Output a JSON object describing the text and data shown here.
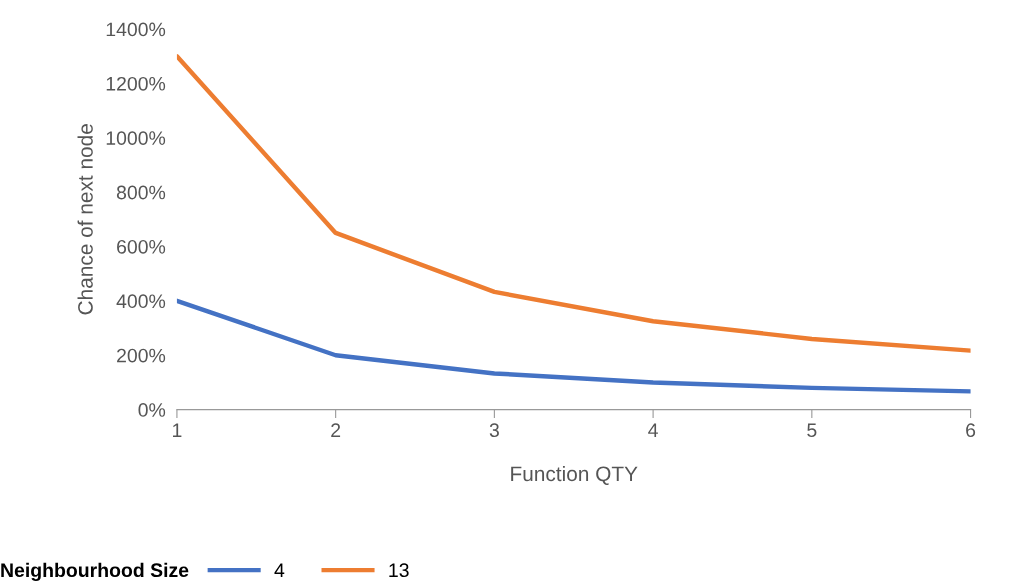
{
  "chart_data": {
    "type": "line",
    "xlabel": "Function QTY",
    "ylabel": "Chance of next node",
    "legend_title": "Neighbourhood Size",
    "x": [
      1,
      2,
      3,
      4,
      5,
      6
    ],
    "series": [
      {
        "name": "4",
        "color": "#4472c4",
        "values": [
          400,
          200,
          133,
          100,
          80,
          67
        ]
      },
      {
        "name": "13",
        "color": "#ed7d31",
        "values": [
          1300,
          650,
          433,
          325,
          260,
          217
        ]
      }
    ],
    "xlim": [
      1,
      6
    ],
    "xticks": [
      1,
      2,
      3,
      4,
      5,
      6
    ],
    "ylim": [
      0,
      1400
    ],
    "yticks": [
      {
        "value": 0,
        "label": "0%"
      },
      {
        "value": 200,
        "label": "200%"
      },
      {
        "value": 400,
        "label": "400%"
      },
      {
        "value": 600,
        "label": "600%"
      },
      {
        "value": 800,
        "label": "800%"
      },
      {
        "value": 1000,
        "label": "1000%"
      },
      {
        "value": 1200,
        "label": "1200%"
      },
      {
        "value": 1400,
        "label": "1400%"
      }
    ],
    "grid": false,
    "legend": "bottom",
    "marker": "none",
    "line_style": "solid"
  }
}
